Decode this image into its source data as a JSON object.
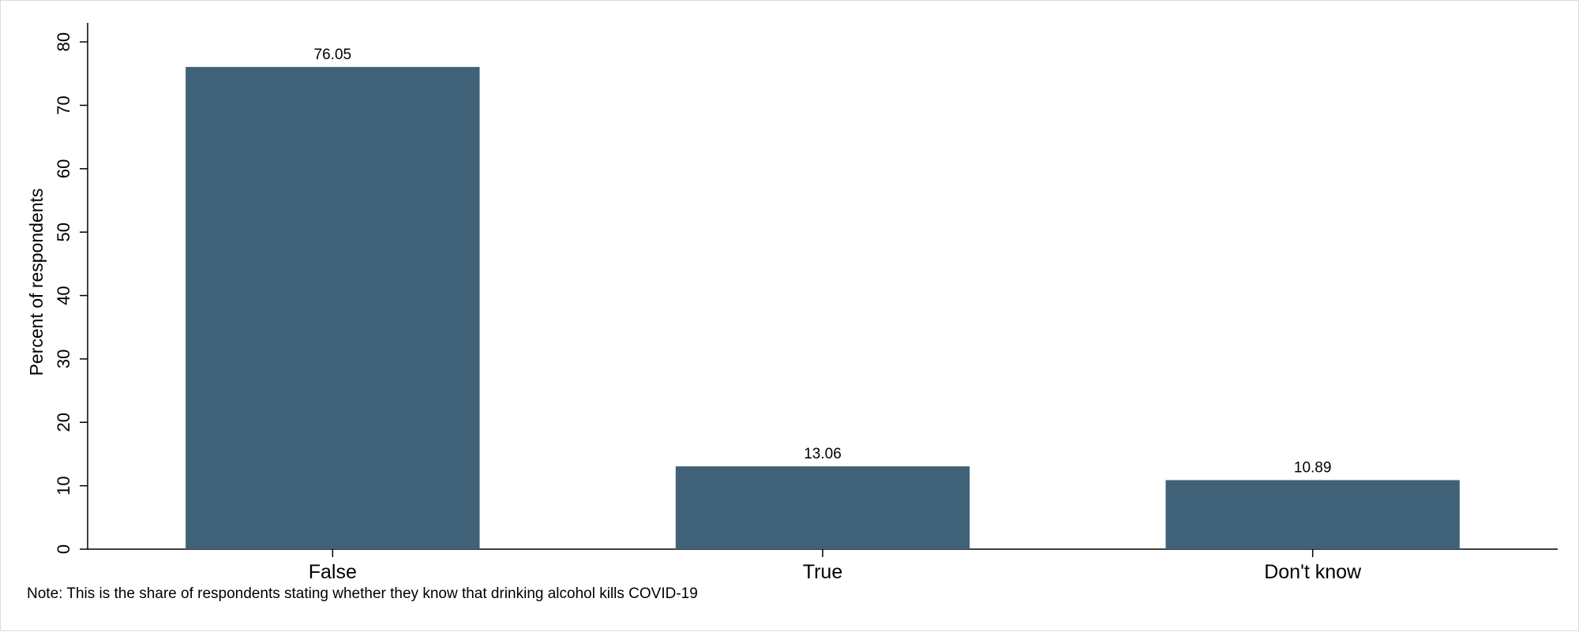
{
  "chart_data": {
    "type": "bar",
    "categories": [
      "False",
      "True",
      "Don't know"
    ],
    "values": [
      76.05,
      13.06,
      10.89
    ],
    "value_labels": [
      "76.05",
      "13.06",
      "10.89"
    ],
    "title": "",
    "xlabel": "",
    "ylabel": "Percent of respondents",
    "ylim": [
      0,
      83
    ],
    "yticks": [
      "0",
      "10",
      "20",
      "30",
      "40",
      "50",
      "60",
      "70",
      "80"
    ],
    "grid": false,
    "legend": "none",
    "bar_color": "#3f6279",
    "note": "Note: This is the share of respondents stating whether they know that drinking alcohol kills COVID-19"
  }
}
